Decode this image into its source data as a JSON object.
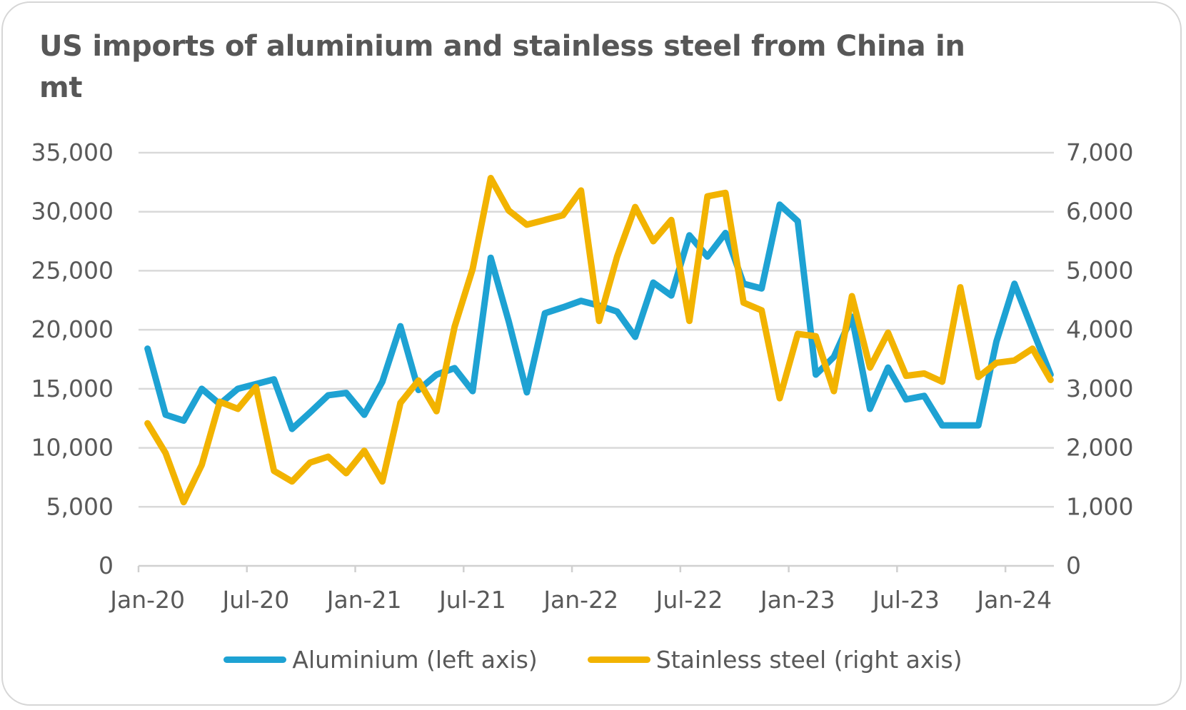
{
  "title": "US imports of aluminium and stainless steel from China in mt",
  "chart_data": {
    "type": "line",
    "title": "US imports of aluminium and stainless steel from China in mt",
    "x": [
      "Jan-20",
      "Feb-20",
      "Mar-20",
      "Apr-20",
      "May-20",
      "Jun-20",
      "Jul-20",
      "Aug-20",
      "Sep-20",
      "Oct-20",
      "Nov-20",
      "Dec-20",
      "Jan-21",
      "Feb-21",
      "Mar-21",
      "Apr-21",
      "May-21",
      "Jun-21",
      "Jul-21",
      "Aug-21",
      "Sep-21",
      "Oct-21",
      "Nov-21",
      "Dec-21",
      "Jan-22",
      "Feb-22",
      "Mar-22",
      "Apr-22",
      "May-22",
      "Jun-22",
      "Jul-22",
      "Aug-22",
      "Sep-22",
      "Oct-22",
      "Nov-22",
      "Dec-22",
      "Jan-23",
      "Feb-23",
      "Mar-23",
      "Apr-23",
      "May-23",
      "Jun-23",
      "Jul-23",
      "Aug-23",
      "Sep-23",
      "Oct-23",
      "Nov-23",
      "Dec-23",
      "Jan-24",
      "Feb-24",
      "Mar-24"
    ],
    "x_tick_labels": [
      "Jan-20",
      "Jul-20",
      "Jan-21",
      "Jul-21",
      "Jan-22",
      "Jul-22",
      "Jan-23",
      "Jul-23",
      "Jan-24"
    ],
    "y_left": {
      "range": [
        0,
        35000
      ],
      "ticks": [
        "0",
        "5,000",
        "10,000",
        "15,000",
        "20,000",
        "25,000",
        "30,000",
        "35,000"
      ]
    },
    "y_right": {
      "range": [
        0,
        7000
      ],
      "ticks": [
        "0",
        "1,000",
        "2,000",
        "3,000",
        "4,000",
        "5,000",
        "6,000",
        "7,000"
      ]
    },
    "grid": true,
    "legend_position": "bottom",
    "series": [
      {
        "name": "Aluminium (left axis)",
        "axis": "left",
        "color": "#1EA2D3",
        "values": [
          18400,
          12800,
          12300,
          15000,
          13700,
          15000,
          15400,
          15800,
          11600,
          13000,
          14450,
          14650,
          12800,
          15600,
          20300,
          14900,
          16200,
          16750,
          14800,
          26100,
          20700,
          14700,
          21400,
          21900,
          22450,
          22050,
          21540,
          19400,
          24000,
          22900,
          28000,
          26200,
          28200,
          23900,
          23500,
          30600,
          29200,
          16200,
          17700,
          21100,
          13300,
          16800,
          14100,
          14400,
          11900,
          11900,
          11900,
          19000,
          23900,
          20000,
          16200
        ]
      },
      {
        "name": "Stainless steel (right axis)",
        "axis": "right",
        "color": "#F2B300",
        "values": [
          2415,
          1910,
          1080,
          1710,
          2780,
          2660,
          3030,
          1610,
          1430,
          1750,
          1850,
          1570,
          1950,
          1430,
          2760,
          3140,
          2620,
          4050,
          5030,
          6570,
          6020,
          5780,
          5860,
          5940,
          6360,
          4150,
          5240,
          6080,
          5500,
          5860,
          4150,
          6260,
          6320,
          4460,
          4330,
          2840,
          3930,
          3890,
          2960,
          4570,
          3360,
          3950,
          3220,
          3260,
          3120,
          4720,
          3200,
          3440,
          3480,
          3680,
          3150
        ]
      }
    ]
  }
}
